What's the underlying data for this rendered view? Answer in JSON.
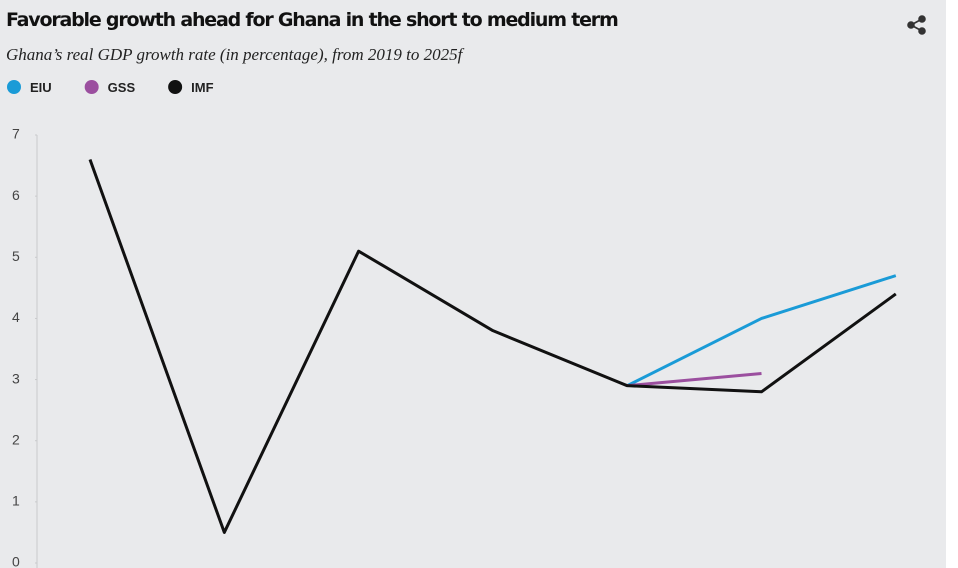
{
  "chart_data": {
    "type": "line",
    "title": "Favorable growth ahead for Ghana in the short to medium term",
    "subtitle": "Ghana’s real GDP growth rate (in percentage), from 2019 to 2025f",
    "categories": [
      null,
      null,
      null,
      null,
      null,
      null,
      null
    ],
    "series": [
      {
        "name": "EIU",
        "color": "#1a9bd7",
        "values": [
          null,
          null,
          null,
          null,
          2.9,
          4.0,
          4.7
        ]
      },
      {
        "name": "GSS",
        "color": "#9b4f9f",
        "values": [
          null,
          null,
          null,
          null,
          2.9,
          3.1,
          null
        ]
      },
      {
        "name": "IMF",
        "color": "#111111",
        "values": [
          6.6,
          0.5,
          5.1,
          3.8,
          2.9,
          2.8,
          4.4
        ]
      }
    ],
    "ylim": [
      0,
      7
    ],
    "yticks": [
      0,
      1,
      2,
      3,
      4,
      5,
      6,
      7
    ]
  }
}
